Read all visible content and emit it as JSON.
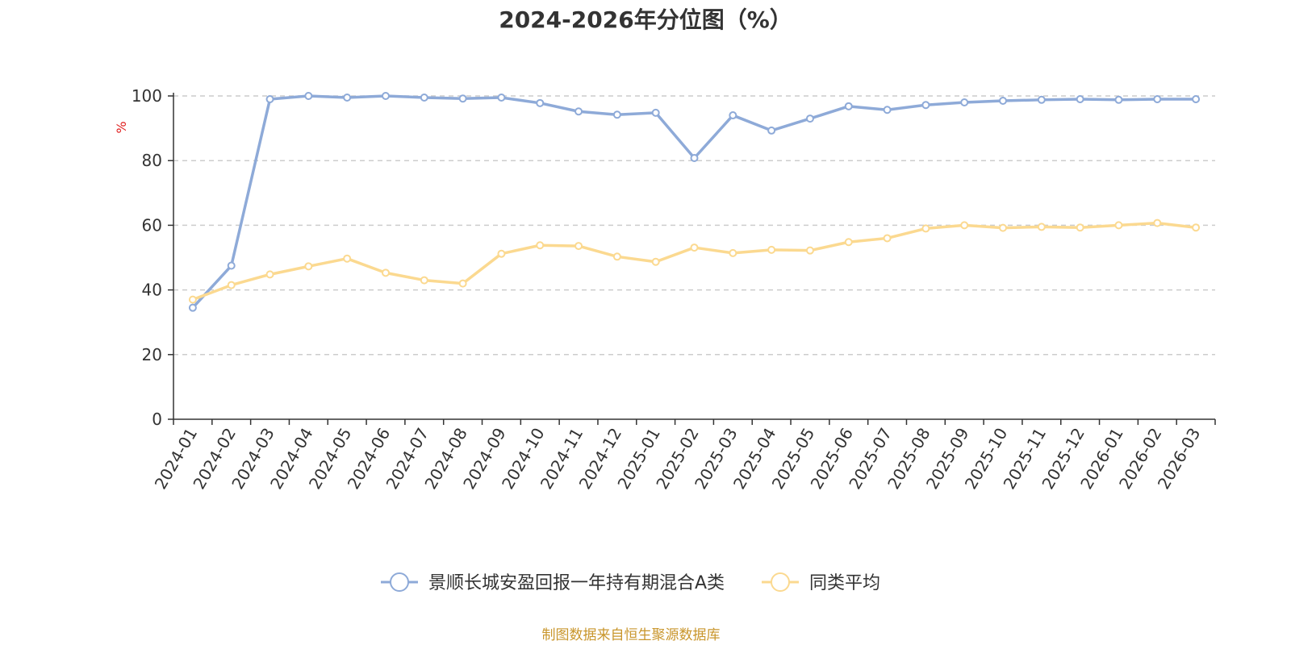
{
  "chart_data": {
    "type": "line",
    "title": "2024-2026年分位图（%）",
    "ylabel": "%",
    "xlabel": "",
    "ylim": [
      0,
      100
    ],
    "yticks": [
      0,
      20,
      40,
      60,
      80,
      100
    ],
    "grid": true,
    "legend_position": "bottom",
    "categories": [
      "2024-01",
      "2024-02",
      "2024-03",
      "2024-04",
      "2024-05",
      "2024-06",
      "2024-07",
      "2024-08",
      "2024-09",
      "2024-10",
      "2024-11",
      "2024-12",
      "2025-01",
      "2025-02",
      "2025-03",
      "2025-04",
      "2025-05",
      "2025-06",
      "2025-07",
      "2025-08",
      "2025-09",
      "2025-10",
      "2025-11",
      "2025-12",
      "2026-01",
      "2026-02",
      "2026-03"
    ],
    "series": [
      {
        "name": "景顺长城安盈回报一年持有期混合A类",
        "color": "#8eaad8",
        "values": [
          34.5,
          47.5,
          99.0,
          100.0,
          99.5,
          100.0,
          99.5,
          99.2,
          99.5,
          97.8,
          95.2,
          94.2,
          94.8,
          80.8,
          94.0,
          89.3,
          93.0,
          96.8,
          95.7,
          97.2,
          98.0,
          98.5,
          98.8,
          99.0,
          98.8,
          99.0,
          99.0
        ]
      },
      {
        "name": "同类平均",
        "color": "#fbd990",
        "values": [
          37.0,
          41.5,
          44.8,
          47.3,
          49.7,
          45.3,
          43.0,
          42.0,
          51.2,
          53.8,
          53.6,
          50.3,
          48.7,
          53.1,
          51.4,
          52.4,
          52.2,
          54.8,
          56.0,
          59.0,
          60.0,
          59.2,
          59.5,
          59.3,
          60.0,
          60.7,
          59.3
        ]
      }
    ]
  },
  "footer": {
    "source": "制图数据来自恒生聚源数据库"
  }
}
